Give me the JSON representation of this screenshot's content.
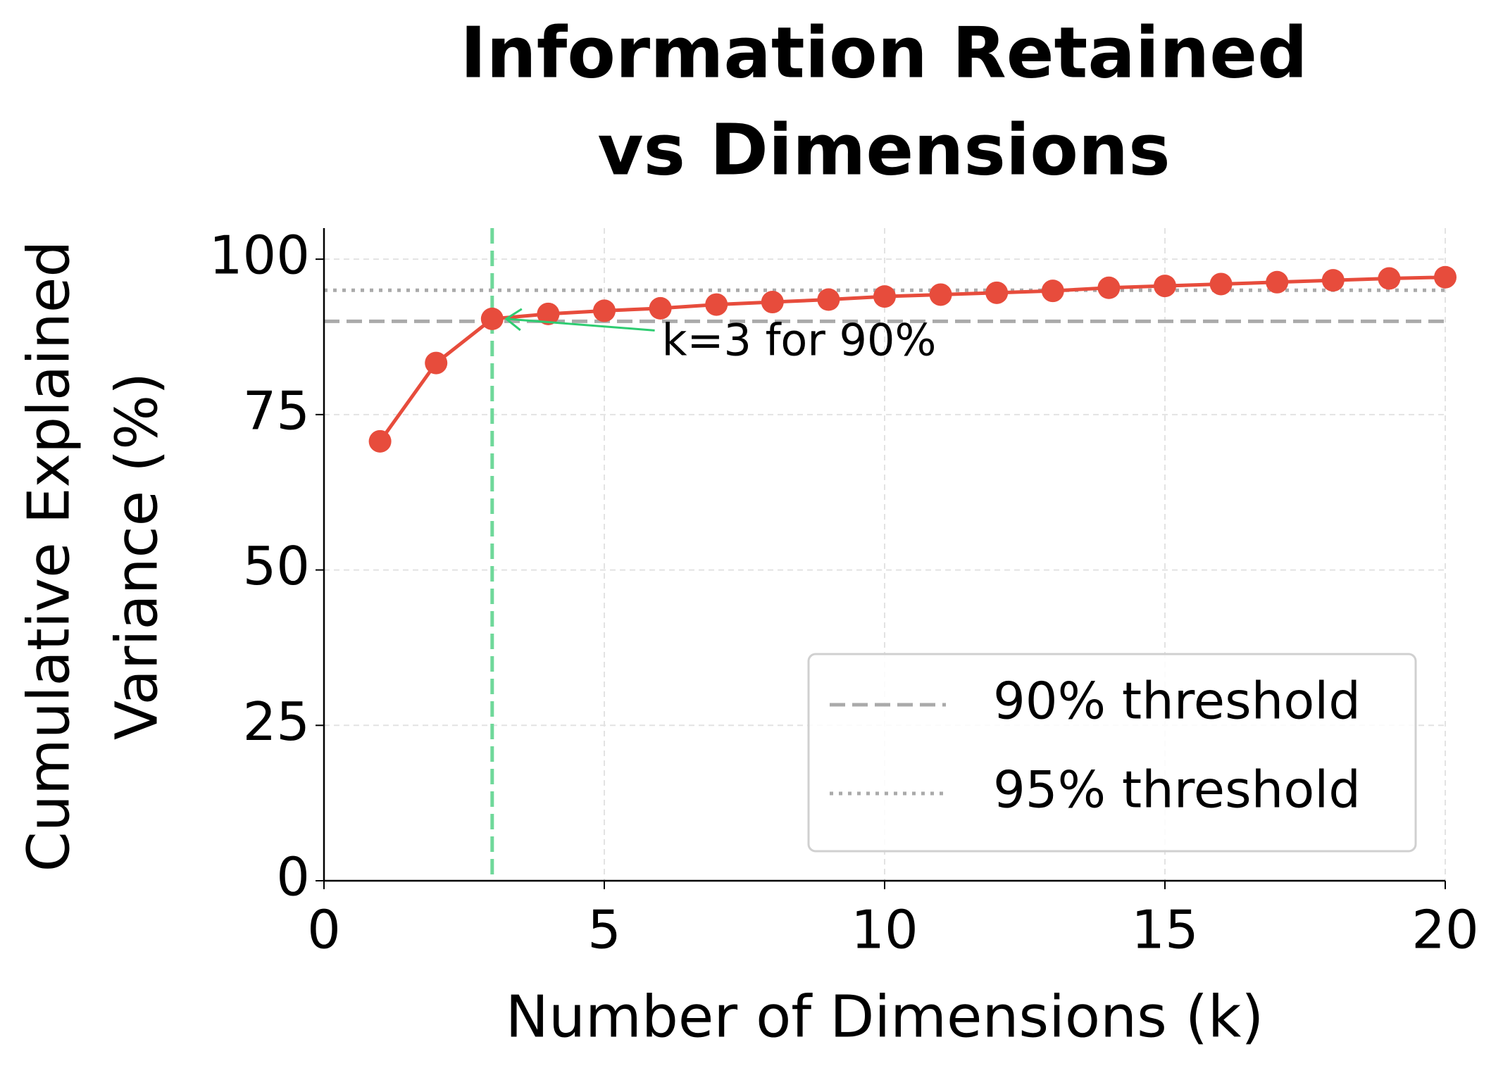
{
  "chart_data": {
    "type": "line",
    "title": [
      "Information Retained",
      "vs Dimensions"
    ],
    "xlabel": "Number of Dimensions (k)",
    "ylabel": [
      "Cumulative Explained",
      "Variance (%)"
    ],
    "x": [
      1,
      2,
      3,
      4,
      5,
      6,
      7,
      8,
      9,
      10,
      11,
      12,
      13,
      14,
      15,
      16,
      17,
      18,
      19,
      20
    ],
    "series": [
      {
        "color": "#e74c3c",
        "values": [
          70.7,
          83.3,
          90.4,
          91.2,
          91.7,
          92.1,
          92.7,
          93.1,
          93.5,
          94.0,
          94.3,
          94.6,
          94.9,
          95.4,
          95.7,
          96.0,
          96.3,
          96.6,
          96.9,
          97.1
        ]
      }
    ],
    "xlim": [
      0,
      20
    ],
    "xticks": [
      0,
      5,
      10,
      15,
      20
    ],
    "ylim": [
      0,
      105
    ],
    "yticks": [
      0,
      25,
      50,
      75,
      100
    ],
    "grid": true,
    "hlines": [
      {
        "y": 90,
        "name": "90% threshold",
        "style": "dashed",
        "color": "#aaaaaa"
      },
      {
        "y": 95,
        "name": "95% threshold",
        "style": "dotted",
        "color": "#aaaaaa"
      }
    ],
    "vline": {
      "x": 3,
      "style": "dashed",
      "color": "#6fd89a"
    },
    "annotation": {
      "text": "k=3 for 90%",
      "xy": [
        3,
        90.4
      ],
      "xytext": [
        6,
        86.5
      ],
      "color": "#2ecc71"
    },
    "legend": "lower right"
  }
}
